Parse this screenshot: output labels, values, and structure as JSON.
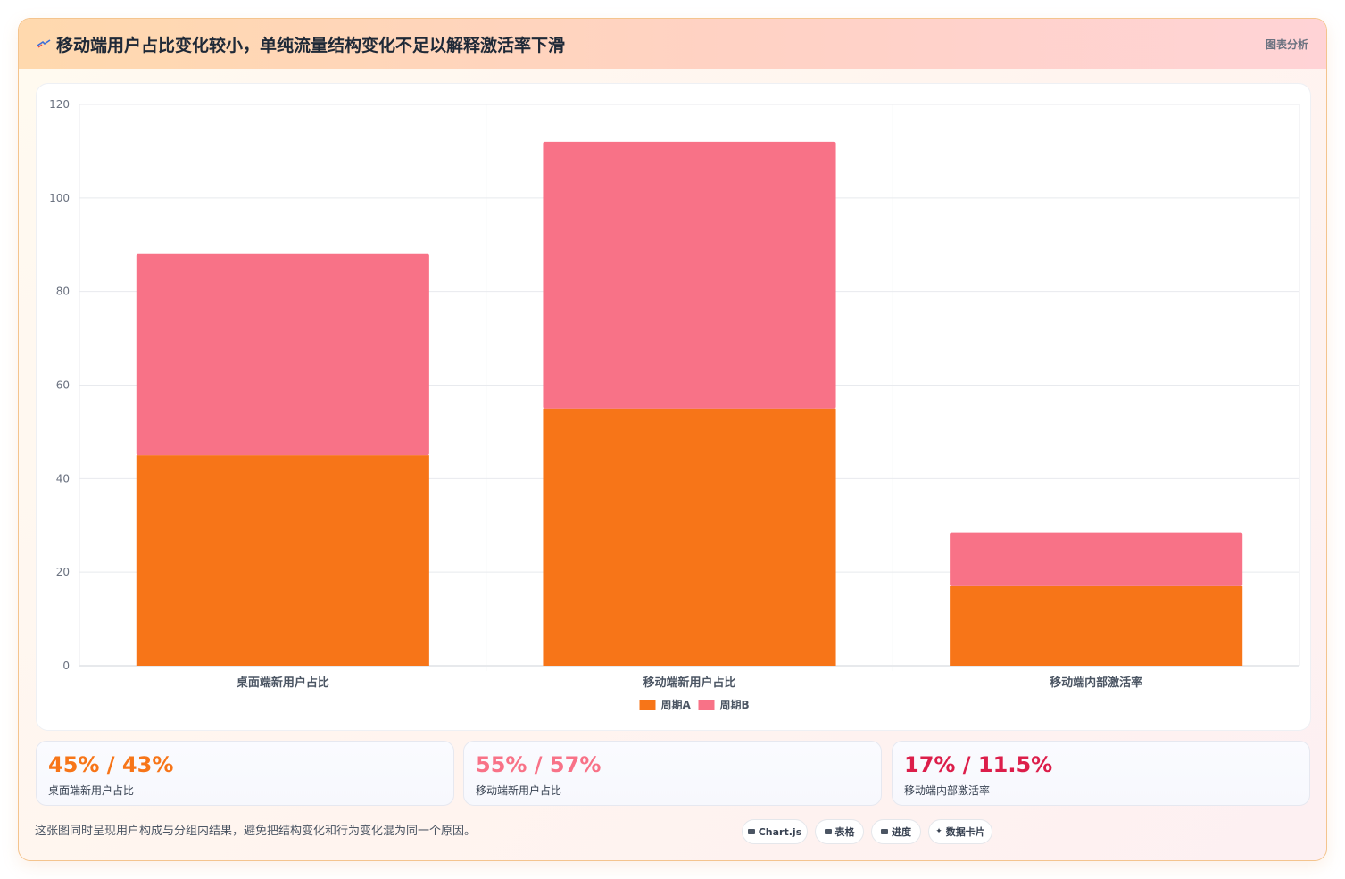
{
  "header": {
    "title": "移动端用户占比变化较小，单纯流量结构变化不足以解释激活率下滑",
    "link_label": "图表分析",
    "icon": "flag-icon"
  },
  "chart_data": {
    "type": "bar",
    "stacked": true,
    "categories": [
      "桌面端新用户占比",
      "移动端新用户占比",
      "移动端内部激活率"
    ],
    "series": [
      {
        "name": "周期A",
        "values": [
          45,
          55,
          17
        ],
        "color": "#f77518"
      },
      {
        "name": "周期B",
        "values": [
          43,
          57,
          11.5
        ],
        "color": "#f87287"
      }
    ],
    "ylim": [
      0,
      120
    ],
    "yticks": [
      0,
      20,
      40,
      60,
      80,
      100,
      120
    ],
    "grid": true,
    "legend": "bottom"
  },
  "stats": [
    {
      "value": "45% / 43%",
      "label": "桌面端新用户占比",
      "color": "#f77518"
    },
    {
      "value": "55% / 57%",
      "label": "移动端新用户占比",
      "color": "#f87287"
    },
    {
      "value": "17% / 11.5%",
      "label": "移动端内部激活率",
      "color": "#dc1e4a"
    }
  ],
  "footnote": "这张图同时呈现用户构成与分组内结果，避免把结构变化和行为变化混为同一个原因。",
  "pills": [
    {
      "label": "Chart.js",
      "icon": "chart-icon"
    },
    {
      "label": "表格",
      "icon": "table-icon"
    },
    {
      "label": "进度",
      "icon": "progress-icon"
    },
    {
      "label": "数据卡片",
      "icon": "sparkle-icon"
    }
  ]
}
